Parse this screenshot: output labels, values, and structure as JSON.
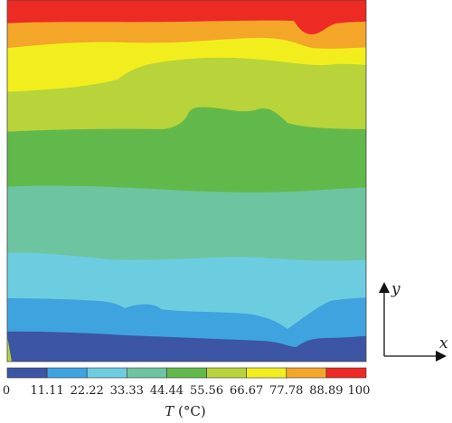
{
  "chart_data": {
    "type": "heatmap",
    "title": "",
    "colorbar": {
      "label_symbol": "T",
      "label_unit": " (°C)",
      "ticks": [
        "0",
        "11.11",
        "22.22",
        "33.33",
        "44.44",
        "55.56",
        "66.67",
        "77.78",
        "88.89",
        "100"
      ],
      "range": [
        0,
        100
      ],
      "levels": [
        {
          "from": 0,
          "to": 11.11,
          "color": "#3c55a5"
        },
        {
          "from": 11.11,
          "to": 22.22,
          "color": "#3fa3df"
        },
        {
          "from": 22.22,
          "to": 33.33,
          "color": "#6dcde0"
        },
        {
          "from": 33.33,
          "to": 44.44,
          "color": "#6dc4a0"
        },
        {
          "from": 44.44,
          "to": 55.56,
          "color": "#62b94b"
        },
        {
          "from": 55.56,
          "to": 66.67,
          "color": "#b8d43a"
        },
        {
          "from": 66.67,
          "to": 77.78,
          "color": "#f2ee1d"
        },
        {
          "from": 77.78,
          "to": 88.89,
          "color": "#f4a629"
        },
        {
          "from": 88.89,
          "to": 100,
          "color": "#ee2a24"
        }
      ]
    },
    "field": "temperature contours, hot at top (100) to cold at bottom (0)",
    "axes": {
      "x_label": "x",
      "y_label": "y"
    }
  }
}
